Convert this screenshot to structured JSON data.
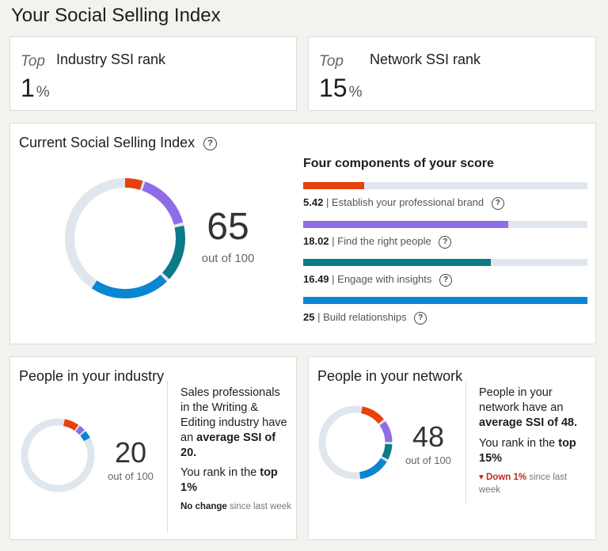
{
  "page_title": "Your Social Selling Index",
  "industry_rank": {
    "top_label": "Top",
    "label": "Industry SSI rank",
    "value": "1",
    "unit": "%"
  },
  "network_rank": {
    "top_label": "Top",
    "label": "Network SSI rank",
    "value": "15",
    "unit": "%"
  },
  "current": {
    "title": "Current Social Selling Index",
    "help_icon": "question-circle-icon",
    "score": "65",
    "out_of": "out of 100",
    "components_title": "Four components of your score",
    "components": [
      {
        "value": "5.42",
        "label": "| Establish your professional brand",
        "fraction": 0.217,
        "color": "#e8410c"
      },
      {
        "value": "18.02",
        "label": "| Find the right people",
        "fraction": 0.721,
        "color": "#8f6ce8"
      },
      {
        "value": "16.49",
        "label": "| Engage with insights",
        "fraction": 0.66,
        "color": "#0d7b87"
      },
      {
        "value": "25",
        "label": "| Build relationships",
        "fraction": 1.0,
        "color": "#0a85d1"
      }
    ]
  },
  "industry": {
    "title": "People in your industry",
    "score": "20",
    "out_of": "out of 100",
    "text_1": "Sales professionals in the Writing & Editing industry have an",
    "text_1_bold": "average SSI of 20.",
    "text_2": "You rank in the",
    "text_2_bold": "top 1%",
    "status_bold": "No change",
    "status_rest": "since last week"
  },
  "network": {
    "title": "People in your network",
    "score": "48",
    "out_of": "out of 100",
    "text_1": "People in your network have an",
    "text_1_bold": "average SSI of 48.",
    "text_2": "You rank in the",
    "text_2_bold": "top 15%",
    "status_bold": "Down 1%",
    "status_rest": "since last week",
    "status_icon": "down-arrow-icon"
  }
}
